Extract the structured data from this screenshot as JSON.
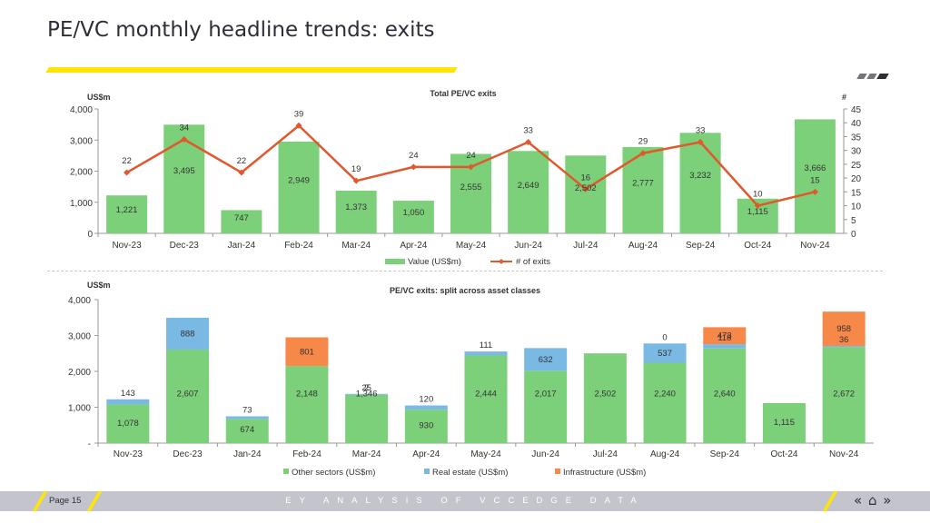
{
  "page": {
    "title": "PE/VC monthly headline trends: exits",
    "page_label": "Page 15",
    "footer_text": "EY ANALYSIS OF VCCEDGE DATA",
    "nav": {
      "prev": "«",
      "home": "⌂",
      "next": "»"
    }
  },
  "colors": {
    "green": "#7dd07a",
    "blue": "#79b9e4",
    "orange": "#f6884a",
    "line": "#e0582b",
    "yellow": "#ffe600",
    "footer_bg": "#c4c4cd"
  },
  "chart_data": [
    {
      "type": "bar",
      "title": "Total PE/VC exits",
      "left_unit": "US$m",
      "right_unit": "#",
      "categories": [
        "Nov-23",
        "Dec-23",
        "Jan-24",
        "Feb-24",
        "Mar-24",
        "Apr-24",
        "May-24",
        "Jun-24",
        "Jul-24",
        "Aug-24",
        "Sep-24",
        "Oct-24",
        "Nov-24"
      ],
      "series": [
        {
          "name": "Value (US$m)",
          "kind": "bar",
          "axis": "left",
          "color": "#7dd07a",
          "values": [
            1221,
            3495,
            747,
            2949,
            1373,
            1050,
            2555,
            2649,
            2502,
            2777,
            3232,
            1115,
            3666
          ],
          "labels": [
            "1,221",
            "3,495",
            "747",
            "2,949",
            "1,373",
            "1,050",
            "2,555",
            "2,649",
            "2,502",
            "2,777",
            "3,232",
            "1,115",
            "3,666"
          ]
        },
        {
          "name": "# of exits",
          "kind": "line",
          "axis": "right",
          "color": "#e0582b",
          "values": [
            22,
            34,
            22,
            39,
            19,
            24,
            24,
            33,
            16,
            29,
            33,
            10,
            15
          ],
          "labels": [
            "22",
            "34",
            "22",
            "39",
            "19",
            "24",
            "24",
            "33",
            "16",
            "29",
            "33",
            "10",
            "15"
          ]
        }
      ],
      "ylim": [
        0,
        4000
      ],
      "yticks": [
        0,
        1000,
        2000,
        3000,
        4000
      ],
      "ytick_labels": [
        "0",
        "1,000",
        "2,000",
        "3,000",
        "4,000"
      ],
      "y2lim": [
        0,
        45
      ],
      "y2ticks": [
        0,
        5,
        10,
        15,
        20,
        25,
        30,
        35,
        40,
        45
      ],
      "y2tick_labels": [
        "0",
        "5",
        "10",
        "15",
        "20",
        "25",
        "30",
        "35",
        "40",
        "45"
      ],
      "legend": "bottom",
      "grid": false
    },
    {
      "type": "bar",
      "stacked": true,
      "title": "PE/VC exits: split across asset classes",
      "left_unit": "US$m",
      "categories": [
        "Nov-23",
        "Dec-23",
        "Jan-24",
        "Feb-24",
        "Mar-24",
        "Apr-24",
        "May-24",
        "Jun-24",
        "Jul-24",
        "Aug-24",
        "Sep-24",
        "Oct-24",
        "Nov-24"
      ],
      "series": [
        {
          "name": "Other sectors (US$m)",
          "color": "#7dd07a",
          "values": [
            1078,
            2607,
            674,
            2148,
            1346,
            930,
            2444,
            2017,
            2502,
            2240,
            2640,
            1115,
            2672
          ],
          "labels": [
            "1,078",
            "2,607",
            "674",
            "2,148",
            "1,346",
            "930",
            "2,444",
            "2,017",
            "2,502",
            "2,240",
            "2,640",
            "1,115",
            "2,672"
          ]
        },
        {
          "name": "Real estate (US$m)",
          "color": "#79b9e4",
          "values": [
            143,
            888,
            73,
            0,
            25,
            120,
            111,
            632,
            0,
            537,
            118,
            0,
            36
          ],
          "labels": [
            "143",
            "888",
            "73",
            "",
            "25",
            "120",
            "111",
            "632",
            "",
            "537",
            "118",
            "",
            "36"
          ]
        },
        {
          "name": "Infrastructure (US$m)",
          "color": "#f6884a",
          "values": [
            0,
            0,
            0,
            801,
            2,
            0,
            0,
            0,
            0,
            0,
            473,
            0,
            958
          ],
          "labels": [
            "",
            "",
            "",
            "801",
            "2",
            "",
            "",
            "",
            "",
            "0",
            "473",
            "",
            "958"
          ]
        }
      ],
      "ylim": [
        0,
        4000
      ],
      "yticks": [
        0,
        1000,
        2000,
        3000,
        4000
      ],
      "ytick_labels": [
        "-",
        "1,000",
        "2,000",
        "3,000",
        "4,000"
      ],
      "legend": "bottom",
      "grid": false
    }
  ]
}
